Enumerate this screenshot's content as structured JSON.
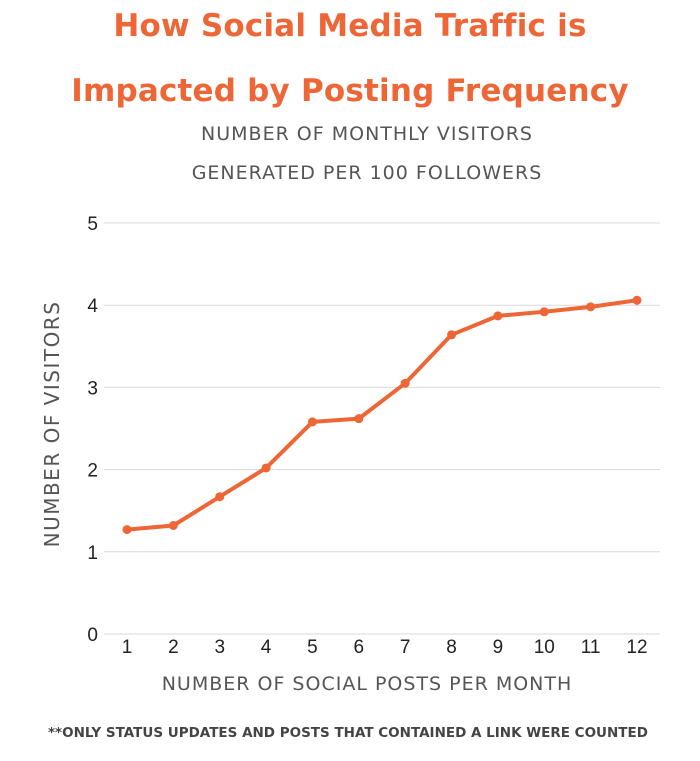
{
  "title_line1": "How Social Media Traffic is",
  "title_line2": "Impacted by Posting Frequency",
  "subtitle_line1": "NUMBER OF MONTHLY VISITORS",
  "subtitle_line2": "GENERATED PER 100 FOLLOWERS",
  "footnote": "**ONLY STATUS UPDATES AND POSTS THAT CONTAINED A LINK WERE COUNTED",
  "colors": {
    "accent": "#ee6636",
    "grid": "#d9d9d9",
    "axis_text": "#555555"
  },
  "chart_data": {
    "type": "line",
    "title": "How Social Media Traffic is Impacted by Posting Frequency",
    "subtitle": "NUMBER OF MONTHLY VISITORS GENERATED PER 100 FOLLOWERS",
    "xlabel": "NUMBER OF SOCIAL POSTS PER MONTH",
    "ylabel": "NUMBER OF VISITORS",
    "x": [
      1,
      2,
      3,
      4,
      5,
      6,
      7,
      8,
      9,
      10,
      11,
      12
    ],
    "y": [
      1.27,
      1.32,
      1.67,
      2.02,
      2.58,
      2.62,
      3.05,
      3.64,
      3.87,
      3.92,
      3.98,
      4.06
    ],
    "yticks": [
      0,
      1,
      2,
      3,
      4,
      5
    ],
    "ylim": [
      0,
      5
    ],
    "xlim": [
      1,
      12
    ],
    "grid": true,
    "legend": "none"
  }
}
